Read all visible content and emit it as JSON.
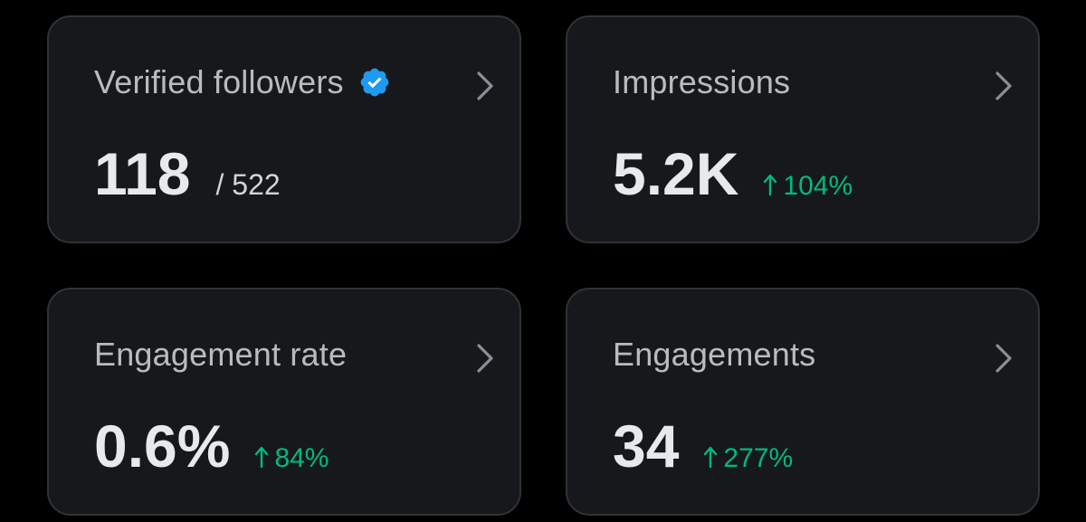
{
  "colors": {
    "background": "#000000",
    "card_background": "#16181c",
    "card_border": "#2f3336",
    "text_primary": "#e7e9ea",
    "verified_blue": "#1d9bf0",
    "positive_green": "#00ba7c"
  },
  "cards": [
    {
      "label": "Verified followers",
      "icon": "verified-badge-icon",
      "value": "118",
      "sub": "/ 522"
    },
    {
      "label": "Impressions",
      "value": "5.2K",
      "delta": "104%",
      "delta_icon": "arrow-up-icon"
    },
    {
      "label": "Engagement rate",
      "value": "0.6%",
      "delta": "84%",
      "delta_icon": "arrow-up-icon"
    },
    {
      "label": "Engagements",
      "value": "34",
      "delta": "277%",
      "delta_icon": "arrow-up-icon"
    }
  ]
}
